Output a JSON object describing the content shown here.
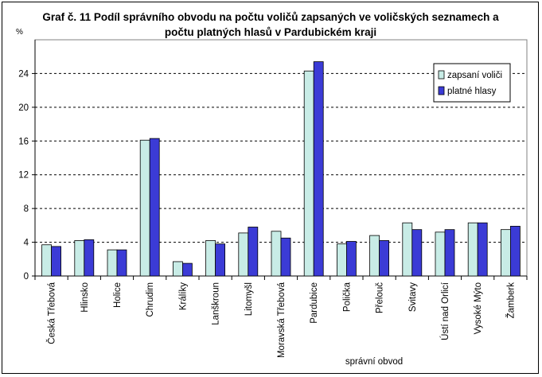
{
  "chart_data": {
    "type": "bar",
    "title": "Graf č. 11 Podíl správního obvodu na počtu voličů zapsaných ve voličských seznamech a počtu platných hlasů v Pardubickém kraji",
    "ylabel": "%",
    "xlabel": "správní obvod",
    "ylim": [
      0,
      28
    ],
    "yticks": [
      0,
      4,
      8,
      12,
      16,
      20,
      24
    ],
    "grid": true,
    "legend_position": "top-right",
    "categories": [
      "Česká Třebová",
      "Hlinsko",
      "Holice",
      "Chrudim",
      "Králíky",
      "Lanškroun",
      "Litomyšl",
      "Moravská Třebová",
      "Pardubice",
      "Polička",
      "Přelouč",
      "Svitavy",
      "Ústí nad Orlicí",
      "Vysoké Mýto",
      "Žamberk"
    ],
    "series": [
      {
        "name": "zapsaní voliči",
        "color": "#c8ece6",
        "values": [
          3.7,
          4.2,
          3.1,
          16.1,
          1.7,
          4.2,
          5.1,
          5.3,
          24.3,
          3.8,
          4.8,
          6.3,
          5.2,
          6.3,
          5.5
        ]
      },
      {
        "name": "platné hlasy",
        "color": "#3b3bd6",
        "values": [
          3.5,
          4.3,
          3.1,
          16.3,
          1.5,
          3.8,
          5.8,
          4.5,
          25.4,
          4.1,
          4.2,
          5.5,
          5.5,
          6.3,
          5.9
        ]
      }
    ]
  }
}
